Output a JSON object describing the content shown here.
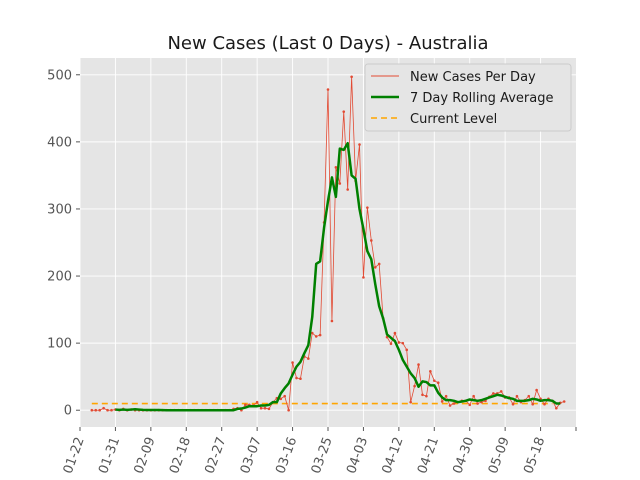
{
  "chart_data": {
    "type": "line",
    "title": "New Cases (Last 0 Days) - Australia",
    "xlabel": "",
    "ylabel": "",
    "ylim": [
      -25,
      525
    ],
    "y_ticks": [
      0,
      100,
      200,
      300,
      400,
      500
    ],
    "x_ticks": [
      "01-22",
      "01-31",
      "02-09",
      "02-18",
      "02-27",
      "03-07",
      "03-16",
      "03-25",
      "04-03",
      "04-12",
      "04-21",
      "04-30",
      "05-09",
      "05-18"
    ],
    "x_start": "2020-01-22",
    "grid": true,
    "legend_position": "top-right",
    "series": [
      {
        "name": "New Cases Per Day",
        "style": "thin-line-markers",
        "color": "#e24a33",
        "start": "2020-01-25",
        "values": [
          0,
          0,
          0,
          3,
          0,
          0,
          1,
          0,
          2,
          0,
          1,
          0,
          0,
          0,
          0,
          0,
          0,
          0,
          0,
          0,
          0,
          0,
          0,
          0,
          0,
          0,
          0,
          0,
          0,
          0,
          0,
          0,
          0,
          0,
          0,
          0,
          2,
          3,
          0,
          8,
          8,
          7,
          12,
          3,
          3,
          2,
          12,
          18,
          17,
          21,
          0,
          71,
          48,
          47,
          80,
          77,
          115,
          110,
          112,
          280,
          478,
          133,
          362,
          338,
          445,
          329,
          497,
          342,
          396,
          198,
          302,
          253,
          213,
          218,
          137,
          109,
          99,
          115,
          101,
          100,
          90,
          12,
          36,
          68,
          23,
          21,
          58,
          44,
          41,
          13,
          21,
          7,
          10,
          12,
          14,
          14,
          8,
          21,
          10,
          12,
          14,
          20,
          25,
          25,
          28,
          19,
          19,
          9,
          21,
          12,
          15,
          21,
          9,
          30,
          17,
          9,
          17,
          14,
          3,
          11,
          13
        ]
      },
      {
        "name": "7 Day Rolling Average",
        "style": "thick-line",
        "color": "#008000",
        "start": "2020-01-31",
        "values": [
          1,
          0.5,
          1,
          0.6,
          1,
          1.5,
          1,
          0.5,
          0.3,
          0.3,
          0.3,
          0.3,
          0.1,
          0,
          0,
          0,
          0,
          0,
          0,
          0,
          0,
          0,
          0,
          0,
          0,
          0,
          0,
          0,
          0,
          0,
          0,
          2,
          2.5,
          4,
          6,
          6,
          6,
          7,
          7,
          8,
          12,
          12,
          25,
          33,
          40,
          53,
          65,
          72,
          85,
          97,
          139,
          218,
          222,
          272,
          312,
          347,
          318,
          390,
          388,
          398,
          350,
          345,
          300,
          270,
          237,
          225,
          188,
          155,
          137,
          113,
          108,
          103,
          90,
          75,
          65,
          55,
          48,
          35,
          43,
          42,
          37,
          37,
          26,
          19,
          15,
          15,
          14,
          12,
          13,
          14,
          16,
          15,
          14,
          15,
          17,
          19,
          21,
          23,
          22,
          20,
          18,
          17,
          14,
          14,
          14,
          15,
          17,
          16,
          14,
          15,
          15,
          14,
          10,
          10
        ]
      },
      {
        "name": "Current Level",
        "style": "dashed",
        "color": "#ffa500",
        "constant": 10,
        "start": "2020-01-25",
        "end": "2020-05-21"
      }
    ]
  }
}
